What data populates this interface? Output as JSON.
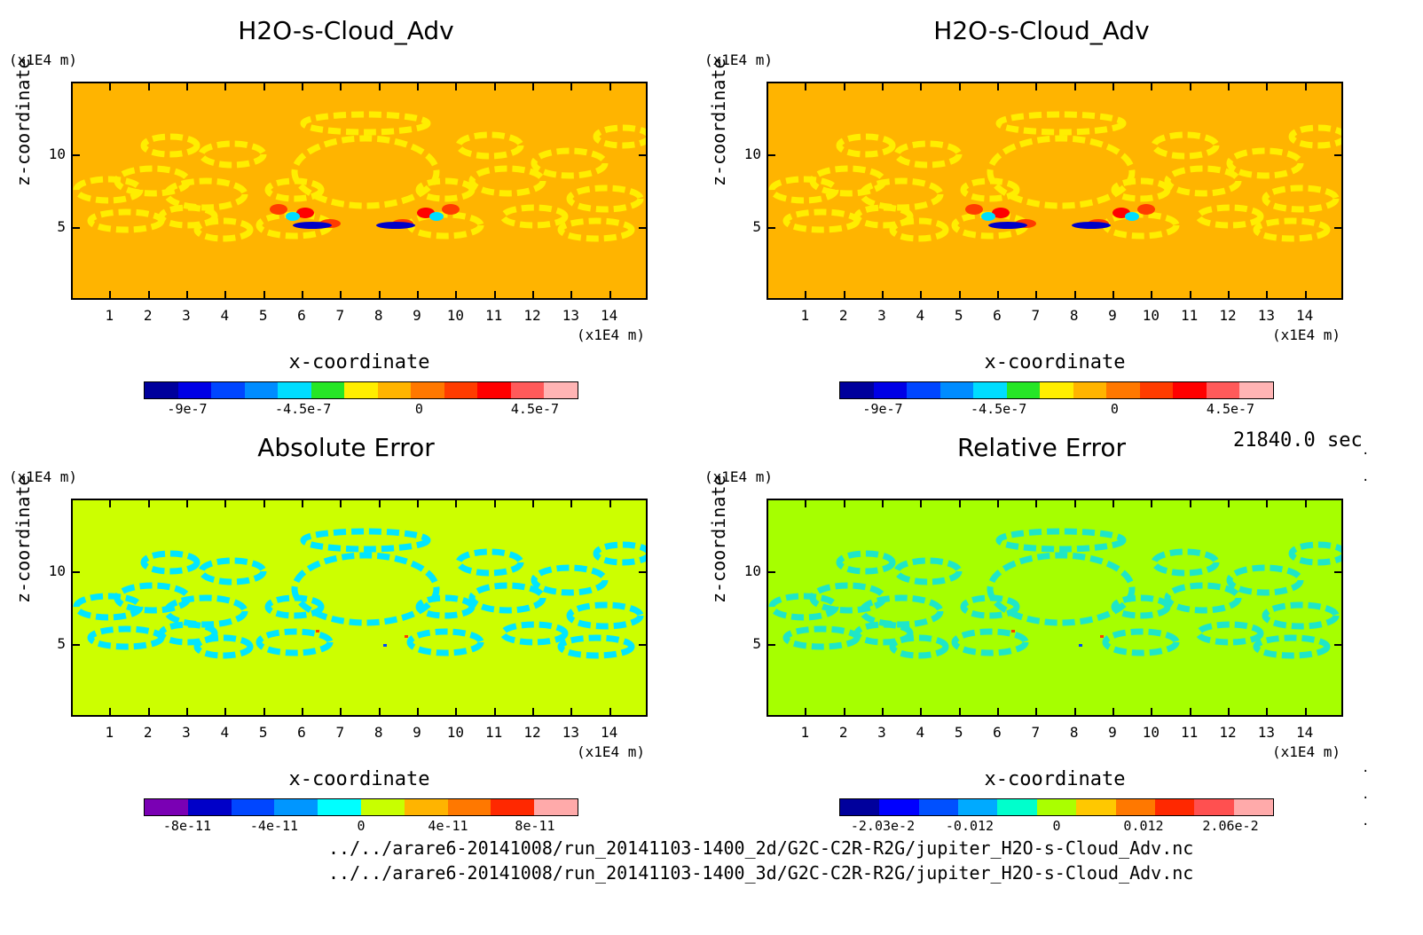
{
  "chart_data": [
    {
      "type": "heatmap",
      "title": "H2O-s-Cloud_Adv",
      "xlabel": "x-coordinate",
      "ylabel": "z-coordinate",
      "x_unit": "(x1E4 m)",
      "y_unit": "(x1E4 m)",
      "x_ticks": [
        "1",
        "2",
        "3",
        "4",
        "5",
        "6",
        "7",
        "8",
        "9",
        "10",
        "11",
        "12",
        "13",
        "14"
      ],
      "y_ticks": [
        "5",
        "10"
      ],
      "xlim": [
        0,
        15
      ],
      "ylim": [
        0,
        15
      ],
      "colorbar": {
        "colors": [
          "#00009c",
          "#0000e6",
          "#0046ff",
          "#008cff",
          "#00ddff",
          "#26e626",
          "#ffee00",
          "#ffb400",
          "#ff7800",
          "#ff3c00",
          "#ff0000",
          "#ff5a5a",
          "#ffb4b4"
        ],
        "labels": [
          "-9e-7",
          "-4.5e-7",
          "0",
          "4.5e-7"
        ]
      },
      "background_color": "#ffb400",
      "feature_color": "#ffee00"
    },
    {
      "type": "heatmap",
      "title": "H2O-s-Cloud_Adv",
      "xlabel": "x-coordinate",
      "ylabel": "z-coordinate",
      "x_unit": "(x1E4 m)",
      "y_unit": "(x1E4 m)",
      "x_ticks": [
        "1",
        "2",
        "3",
        "4",
        "5",
        "6",
        "7",
        "8",
        "9",
        "10",
        "11",
        "12",
        "13",
        "14"
      ],
      "y_ticks": [
        "5",
        "10"
      ],
      "xlim": [
        0,
        15
      ],
      "ylim": [
        0,
        15
      ],
      "colorbar": {
        "colors": [
          "#00009c",
          "#0000e6",
          "#0046ff",
          "#008cff",
          "#00ddff",
          "#26e626",
          "#ffee00",
          "#ffb400",
          "#ff7800",
          "#ff3c00",
          "#ff0000",
          "#ff5a5a",
          "#ffb4b4"
        ],
        "labels": [
          "-9e-7",
          "-4.5e-7",
          "0",
          "4.5e-7"
        ]
      },
      "background_color": "#ffb400",
      "feature_color": "#ffee00"
    },
    {
      "type": "heatmap",
      "title": "Absolute Error",
      "xlabel": "x-coordinate",
      "ylabel": "z-coordinate",
      "x_unit": "(x1E4 m)",
      "y_unit": "(x1E4 m)",
      "x_ticks": [
        "1",
        "2",
        "3",
        "4",
        "5",
        "6",
        "7",
        "8",
        "9",
        "10",
        "11",
        "12",
        "13",
        "14"
      ],
      "y_ticks": [
        "5",
        "10"
      ],
      "xlim": [
        0,
        15
      ],
      "ylim": [
        0,
        15
      ],
      "colorbar": {
        "colors": [
          "#7a00b4",
          "#0000c8",
          "#0046ff",
          "#0096ff",
          "#00ffff",
          "#c8ff00",
          "#ffb400",
          "#ff7800",
          "#ff2800",
          "#ffaaaa"
        ],
        "labels": [
          "-8e-11",
          "-4e-11",
          "0",
          "4e-11",
          "8e-11"
        ]
      },
      "background_color": "#ccff00",
      "feature_color": "#00e5ff"
    },
    {
      "type": "heatmap",
      "title": "Relative Error",
      "xlabel": "x-coordinate",
      "ylabel": "z-coordinate",
      "x_unit": "(x1E4 m)",
      "y_unit": "(x1E4 m)",
      "x_ticks": [
        "1",
        "2",
        "3",
        "4",
        "5",
        "6",
        "7",
        "8",
        "9",
        "10",
        "11",
        "12",
        "13",
        "14"
      ],
      "y_ticks": [
        "5",
        "10"
      ],
      "xlim": [
        0,
        15
      ],
      "ylim": [
        0,
        15
      ],
      "colorbar": {
        "colors": [
          "#00009c",
          "#0000ff",
          "#0050ff",
          "#00aaff",
          "#00ffcc",
          "#aaff00",
          "#ffc800",
          "#ff7800",
          "#ff2800",
          "#ff5050",
          "#ffaaaa"
        ],
        "labels": [
          "-2.03e-2",
          "-0.012",
          "0",
          "0.012",
          "2.06e-2"
        ]
      },
      "background_color": "#a6ff00",
      "feature_color": "#1ee6c8"
    }
  ],
  "time_label": "21840.0 sec",
  "file_paths": [
    "../../arare6-20141008/run_20141103-1400_2d/G2C-C2R-R2G/jupiter_H2O-s-Cloud_Adv.nc",
    "../../arare6-20141008/run_20141103-1400_3d/G2C-C2R-R2G/jupiter_H2O-s-Cloud_Adv.nc"
  ],
  "dots": [
    ".",
    ".",
    ".",
    ".",
    "."
  ]
}
